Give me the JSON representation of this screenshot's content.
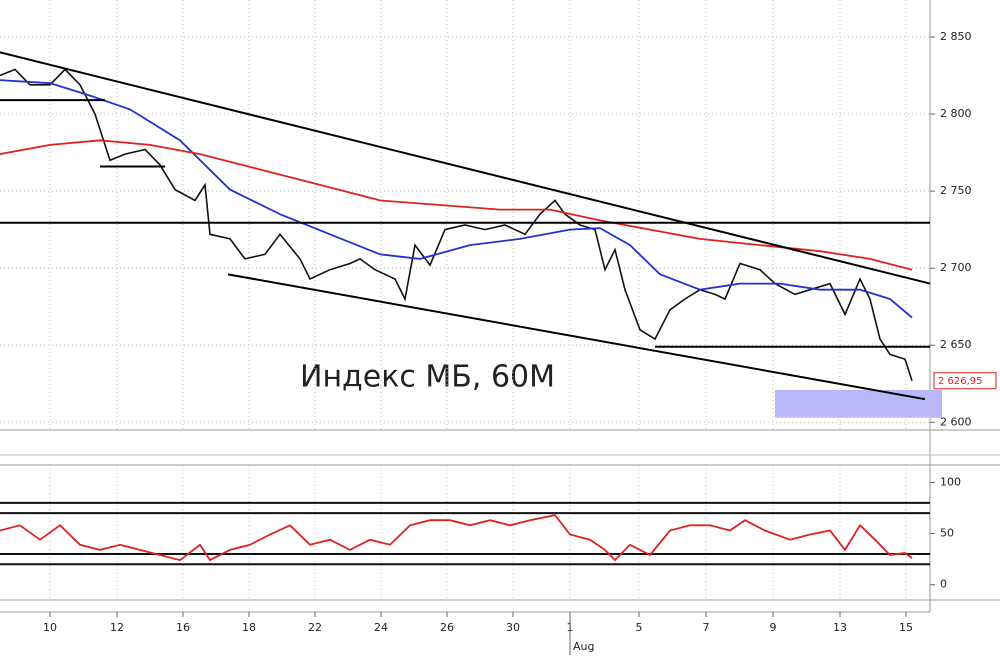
{
  "chart_data": [
    {
      "type": "line",
      "annotation": "Индекс МБ, 60М",
      "xlim": [
        0,
        930
      ],
      "xticks": [
        {
          "value": 50,
          "label": "10"
        },
        {
          "value": 117,
          "label": "12"
        },
        {
          "value": 183,
          "label": "16"
        },
        {
          "value": 249,
          "label": "18"
        },
        {
          "value": 315,
          "label": "22"
        },
        {
          "value": 381,
          "label": "24"
        },
        {
          "value": 447,
          "label": "26"
        },
        {
          "value": 513,
          "label": "30"
        },
        {
          "value": 570,
          "label": "1"
        },
        {
          "value": 639,
          "label": "5"
        },
        {
          "value": 706,
          "label": "7"
        },
        {
          "value": 773,
          "label": "9"
        },
        {
          "value": 840,
          "label": "13"
        },
        {
          "value": 906,
          "label": "15"
        }
      ],
      "x_sublabel": {
        "value": 570,
        "label": "Aug"
      },
      "ylim": [
        2595,
        2874
      ],
      "yticks": [
        {
          "value": 2600,
          "label": "2 600"
        },
        {
          "value": 2650,
          "label": "2 650"
        },
        {
          "value": 2700,
          "label": "2 700"
        },
        {
          "value": 2750,
          "label": "2 750"
        },
        {
          "value": 2800,
          "label": "2 800"
        },
        {
          "value": 2850,
          "label": "2 850"
        }
      ],
      "grid": true,
      "series": [
        {
          "color": "#111111",
          "x": [
            0,
            15,
            30,
            50,
            65,
            80,
            95,
            110,
            125,
            145,
            160,
            175,
            195,
            205,
            210,
            230,
            245,
            265,
            280,
            300,
            310,
            330,
            350,
            360,
            375,
            395,
            405,
            415,
            430,
            445,
            465,
            485,
            505,
            525,
            540,
            555,
            565,
            580,
            595,
            605,
            615,
            625,
            640,
            655,
            670,
            685,
            700,
            715,
            725,
            740,
            760,
            775,
            795,
            810,
            830,
            845,
            860,
            870,
            880,
            890,
            905,
            912
          ],
          "values": [
            2825,
            2829,
            2819,
            2819,
            2829,
            2819,
            2800,
            2770,
            2774,
            2777,
            2767,
            2751,
            2744,
            2754,
            2722,
            2719,
            2706,
            2709,
            2722,
            2706,
            2693,
            2699,
            2703,
            2706,
            2699,
            2693,
            2680,
            2715,
            2702,
            2725,
            2728,
            2725,
            2728,
            2722,
            2735,
            2744,
            2735,
            2728,
            2725,
            2699,
            2712,
            2686,
            2660,
            2654,
            2673,
            2680,
            2686,
            2683,
            2680,
            2703,
            2699,
            2690,
            2683,
            2686,
            2690,
            2670,
            2693,
            2680,
            2654,
            2644,
            2641,
            2626.95
          ]
        },
        {
          "color": "#2233cc",
          "x": [
            0,
            50,
            90,
            130,
            180,
            230,
            280,
            330,
            380,
            420,
            470,
            520,
            570,
            600,
            630,
            660,
            700,
            740,
            780,
            820,
            860,
            890,
            912
          ],
          "values": [
            2822,
            2820,
            2812,
            2803,
            2783,
            2751,
            2735,
            2722,
            2709,
            2706,
            2715,
            2719,
            2725,
            2726,
            2715,
            2696,
            2686,
            2690,
            2690,
            2686,
            2686,
            2680,
            2668
          ]
        },
        {
          "color": "#dd2222",
          "x": [
            0,
            50,
            100,
            150,
            200,
            260,
            320,
            380,
            440,
            500,
            550,
            600,
            650,
            700,
            760,
            820,
            870,
            912
          ],
          "values": [
            2774,
            2780,
            2783,
            2780,
            2774,
            2764,
            2754,
            2744,
            2741,
            2738,
            2738,
            2731,
            2725,
            2719,
            2715,
            2711,
            2706,
            2699
          ]
        }
      ],
      "lines": [
        {
          "x": [
            0,
            930
          ],
          "y": [
            2840,
            2690
          ]
        },
        {
          "x": [
            228,
            925
          ],
          "y": [
            2696,
            2615
          ]
        },
        {
          "x": [
            0,
            930
          ],
          "y": [
            2729.5,
            2729.5
          ]
        },
        {
          "x": [
            655,
            930
          ],
          "y": [
            2649,
            2649
          ]
        },
        {
          "x": [
            0,
            105
          ],
          "y": [
            2809,
            2809
          ]
        },
        {
          "x": [
            100,
            165
          ],
          "y": [
            2766,
            2766
          ]
        }
      ],
      "zone": {
        "x": [
          775,
          942
        ],
        "y": [
          2603,
          2621
        ],
        "color": "#b8b8f8"
      },
      "last_label": {
        "value": 2626.95,
        "label": "2 626,95",
        "color": "#dd2222"
      }
    },
    {
      "type": "line",
      "xlim": [
        0,
        930
      ],
      "ylim": [
        -15,
        117
      ],
      "yticks": [
        0,
        50,
        100
      ],
      "levels": [
        20,
        30,
        70,
        80
      ],
      "series": [
        {
          "color": "#dd2222",
          "x": [
            0,
            20,
            40,
            60,
            80,
            100,
            120,
            140,
            160,
            180,
            200,
            210,
            230,
            250,
            270,
            290,
            310,
            330,
            350,
            370,
            390,
            410,
            430,
            450,
            470,
            490,
            510,
            530,
            555,
            570,
            590,
            605,
            615,
            630,
            650,
            670,
            690,
            710,
            730,
            745,
            765,
            790,
            810,
            830,
            845,
            860,
            875,
            890,
            905,
            912
          ],
          "values": [
            53,
            58,
            44,
            58,
            39,
            34,
            39,
            34,
            29,
            24,
            39,
            24,
            34,
            39,
            49,
            58,
            39,
            44,
            34,
            44,
            39,
            58,
            63,
            63,
            58,
            63,
            58,
            63,
            68,
            49,
            44,
            34,
            24,
            39,
            29,
            53,
            58,
            58,
            53,
            63,
            53,
            44,
            49,
            53,
            34,
            58,
            44,
            29,
            31,
            26
          ]
        }
      ]
    }
  ]
}
